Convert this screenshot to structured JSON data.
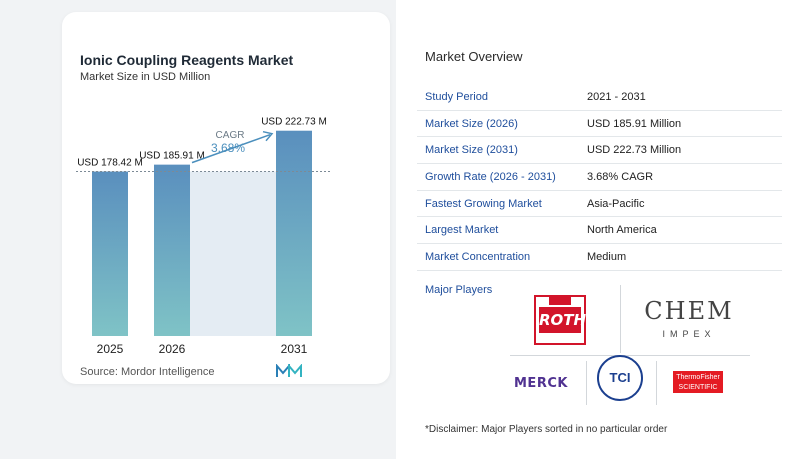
{
  "chart_data": {
    "type": "bar",
    "title": "Ionic Coupling Reagents Market",
    "subtitle": "Market Size in USD Million",
    "categories": [
      "2025",
      "2026",
      "2031"
    ],
    "values": [
      178.42,
      185.91,
      222.73
    ],
    "value_labels": [
      "USD 178.42 M",
      "USD 185.91 M",
      "USD 222.73 M"
    ],
    "cagr_label": "CAGR",
    "cagr_value": "3.68%",
    "ylim": [
      0,
      230
    ],
    "grid": false,
    "colors": {
      "bar_top": "#5a8fbe",
      "bar_bottom": "#7fc3c6",
      "shade": "#e4ecf3",
      "arrow": "#4b8fbd",
      "dashed": "#7c8a96"
    }
  },
  "source": "Source:  Mordor Intelligence",
  "logo_icon": "mordor-intelligence-logo",
  "overview": {
    "title": "Market Overview",
    "rows": [
      {
        "key": "Study Period",
        "value": "2021 - 2031"
      },
      {
        "key": "Market Size (2026)",
        "value": "USD 185.91 Million"
      },
      {
        "key": "Market Size (2031)",
        "value": "USD 222.73 Million"
      },
      {
        "key": "Growth Rate (2026 - 2031)",
        "value": "3.68% CAGR"
      },
      {
        "key": "Fastest Growing Market",
        "value": "Asia-Pacific"
      },
      {
        "key": "Largest Market",
        "value": "North America"
      },
      {
        "key": "Market Concentration",
        "value": "Medium"
      }
    ]
  },
  "players": {
    "title": "Major Players",
    "logos": {
      "roth": "ROTH",
      "chem": "CHEM",
      "impex": "IMPEX",
      "merck": "MERCK",
      "tci": "TCI",
      "thermo": "ThermoFisher SCIENTIFIC"
    }
  },
  "disclaimer": "*Disclaimer: Major Players sorted in no particular order"
}
